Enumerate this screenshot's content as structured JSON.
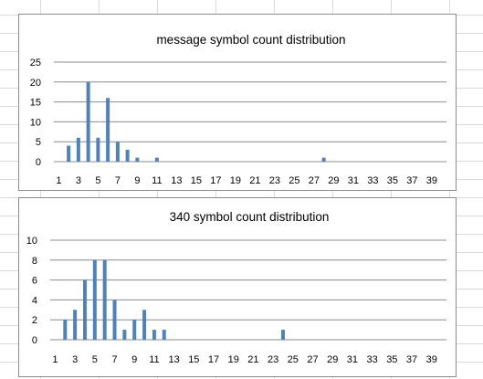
{
  "chart_data": [
    {
      "type": "bar",
      "title": "message symbol count distribution",
      "xlabel": "",
      "ylabel": "",
      "ylim": [
        0,
        25
      ],
      "yticks": [
        0,
        5,
        10,
        15,
        20,
        25
      ],
      "xticks": [
        1,
        3,
        5,
        7,
        9,
        11,
        13,
        15,
        17,
        19,
        21,
        23,
        25,
        27,
        29,
        31,
        33,
        35,
        37,
        39
      ],
      "categories": [
        1,
        2,
        3,
        4,
        5,
        6,
        7,
        8,
        9,
        10,
        11,
        12,
        13,
        14,
        15,
        16,
        17,
        18,
        19,
        20,
        21,
        22,
        23,
        24,
        25,
        26,
        27,
        28,
        29,
        30,
        31,
        32,
        33,
        34,
        35,
        36,
        37,
        38,
        39,
        40
      ],
      "values": [
        0,
        4,
        6,
        20,
        6,
        16,
        5,
        3,
        1,
        0,
        1,
        0,
        0,
        0,
        0,
        0,
        0,
        0,
        0,
        0,
        0,
        0,
        0,
        0,
        0,
        0,
        0,
        1,
        0,
        0,
        0,
        0,
        0,
        0,
        0,
        0,
        0,
        0,
        0,
        0
      ],
      "grid": true,
      "bar_color": "#4f81bd"
    },
    {
      "type": "bar",
      "title": "340 symbol count distribution",
      "xlabel": "",
      "ylabel": "",
      "ylim": [
        0,
        10
      ],
      "yticks": [
        0,
        2,
        4,
        6,
        8,
        10
      ],
      "xticks": [
        1,
        3,
        5,
        7,
        9,
        11,
        13,
        15,
        17,
        19,
        21,
        23,
        25,
        27,
        29,
        31,
        33,
        35,
        37,
        39
      ],
      "categories": [
        1,
        2,
        3,
        4,
        5,
        6,
        7,
        8,
        9,
        10,
        11,
        12,
        13,
        14,
        15,
        16,
        17,
        18,
        19,
        20,
        21,
        22,
        23,
        24,
        25,
        26,
        27,
        28,
        29,
        30,
        31,
        32,
        33,
        34,
        35,
        36,
        37,
        38,
        39,
        40
      ],
      "values": [
        0,
        2,
        3,
        6,
        8,
        8,
        4,
        1,
        2,
        3,
        1,
        1,
        0,
        0,
        0,
        0,
        0,
        0,
        0,
        0,
        0,
        0,
        0,
        1,
        0,
        0,
        0,
        0,
        0,
        0,
        0,
        0,
        0,
        0,
        0,
        0,
        0,
        0,
        0,
        0
      ],
      "grid": true,
      "bar_color": "#4f81bd"
    }
  ],
  "colors": {
    "bar": "#4f81bd",
    "gridline": "#8c8c8c",
    "sheet_grid": "#d9d9d9"
  }
}
